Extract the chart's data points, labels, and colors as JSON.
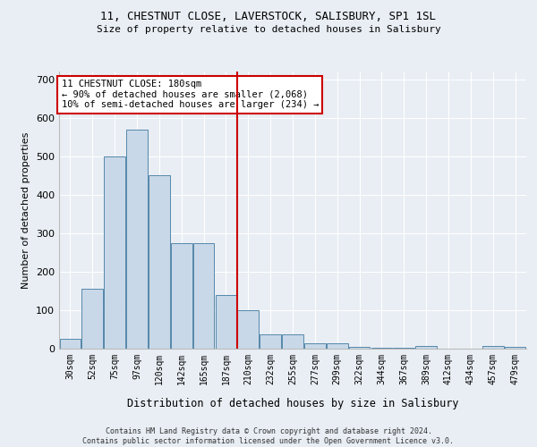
{
  "title1": "11, CHESTNUT CLOSE, LAVERSTOCK, SALISBURY, SP1 1SL",
  "title2": "Size of property relative to detached houses in Salisbury",
  "xlabel": "Distribution of detached houses by size in Salisbury",
  "ylabel": "Number of detached properties",
  "footer1": "Contains HM Land Registry data © Crown copyright and database right 2024.",
  "footer2": "Contains public sector information licensed under the Open Government Licence v3.0.",
  "annotation_line1": "11 CHESTNUT CLOSE: 180sqm",
  "annotation_line2": "← 90% of detached houses are smaller (2,068)",
  "annotation_line3": "10% of semi-detached houses are larger (234) →",
  "bar_labels": [
    "30sqm",
    "52sqm",
    "75sqm",
    "97sqm",
    "120sqm",
    "142sqm",
    "165sqm",
    "187sqm",
    "210sqm",
    "232sqm",
    "255sqm",
    "277sqm",
    "299sqm",
    "322sqm",
    "344sqm",
    "367sqm",
    "389sqm",
    "412sqm",
    "434sqm",
    "457sqm",
    "479sqm"
  ],
  "bar_values": [
    25,
    155,
    500,
    570,
    450,
    275,
    275,
    140,
    100,
    37,
    37,
    15,
    13,
    5,
    3,
    3,
    8,
    0,
    0,
    8,
    5
  ],
  "bar_color": "#c8d8e8",
  "bar_edge_color": "#5588aa",
  "vline_color": "#cc0000",
  "vline_x": 7.5,
  "annotation_box_color": "#cc0000",
  "background_color": "#e8eef4",
  "ylim": [
    0,
    720
  ],
  "yticks": [
    0,
    100,
    200,
    300,
    400,
    500,
    600,
    700
  ]
}
